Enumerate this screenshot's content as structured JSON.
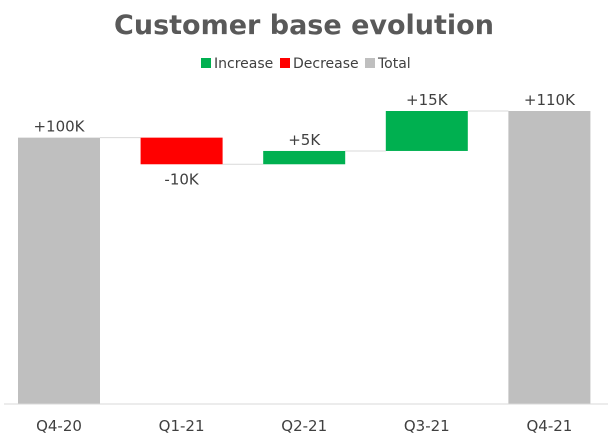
{
  "chart_data": {
    "type": "bar",
    "subtype": "waterfall",
    "title": "Customer base evolution",
    "xlabel": "",
    "ylabel": "",
    "ylim": [
      0,
      110
    ],
    "grid": false,
    "legend_position": "top-center",
    "legend": [
      {
        "name": "Increase",
        "color": "#00B050"
      },
      {
        "name": "Decrease",
        "color": "#FF0000"
      },
      {
        "name": "Total",
        "color": "#BFBFBF"
      }
    ],
    "categories": [
      "Q4-20",
      "Q1-21",
      "Q2-21",
      "Q3-21",
      "Q4-21"
    ],
    "values": [
      100,
      -10,
      5,
      15,
      110
    ],
    "kinds": [
      "total",
      "decrease",
      "increase",
      "increase",
      "total"
    ],
    "data_labels": [
      "+100K",
      "-10K",
      "+5K",
      "+15K",
      "+110K"
    ],
    "unit": "K"
  }
}
